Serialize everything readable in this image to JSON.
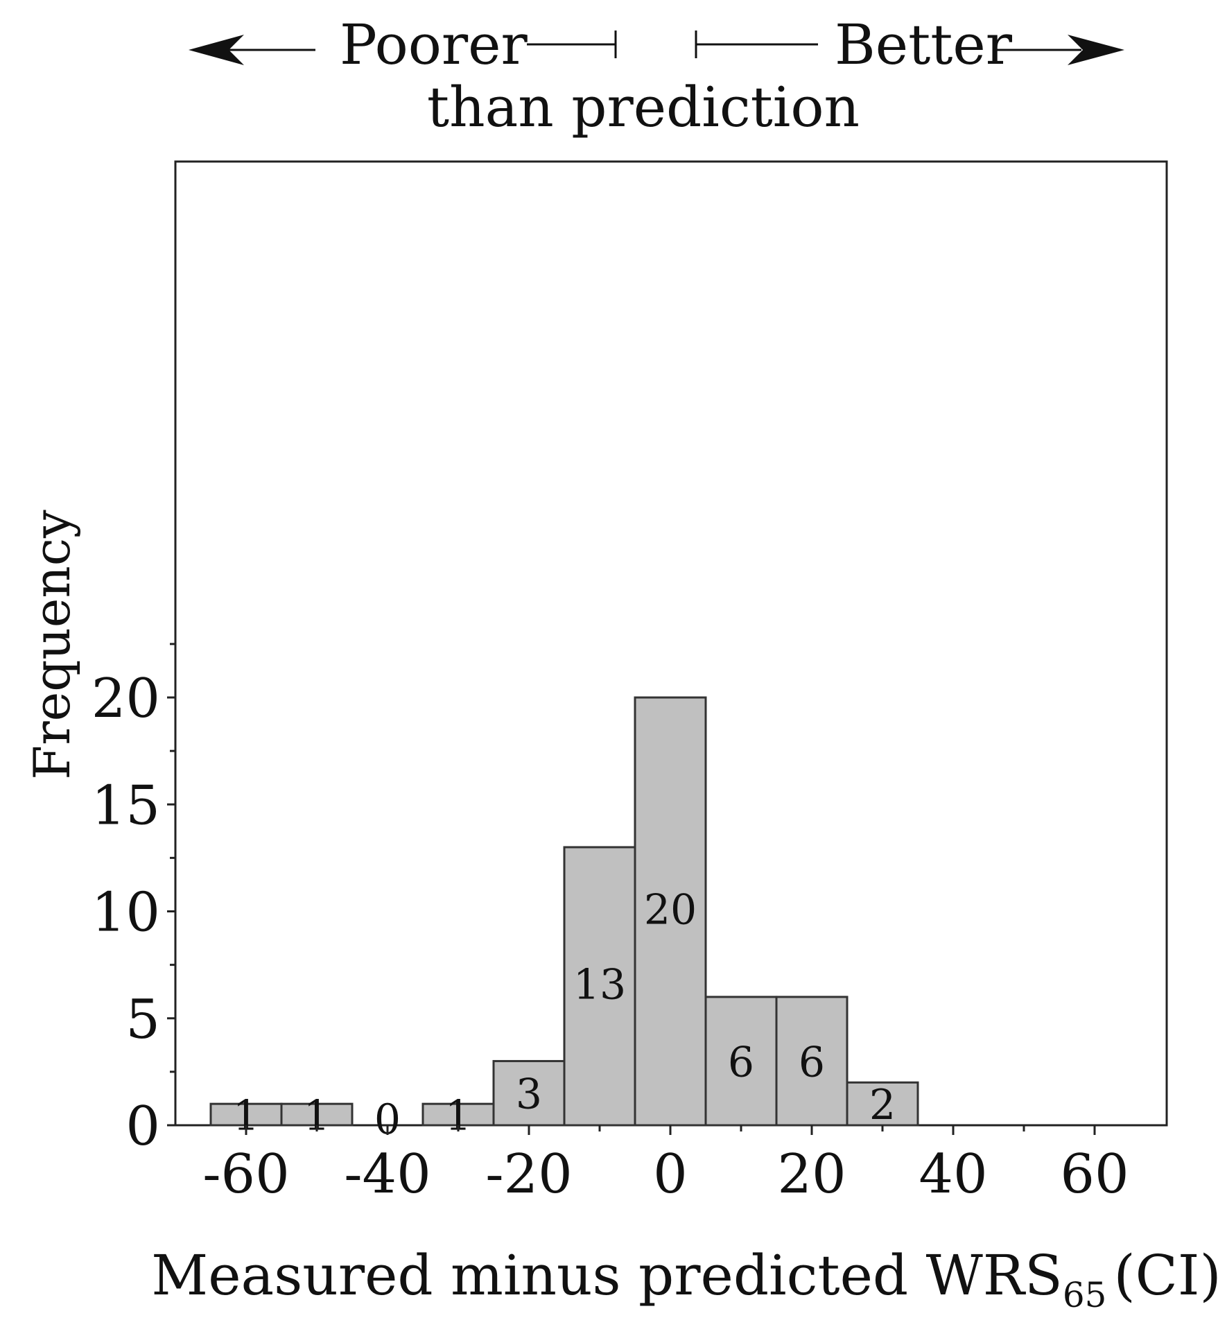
{
  "header": {
    "poorer_label": "Poorer",
    "better_label": "Better",
    "subtitle": "than prediction"
  },
  "chart_data": {
    "type": "bar",
    "bin_width": 10,
    "bins": [
      {
        "center": -60,
        "value": 1
      },
      {
        "center": -50,
        "value": 1
      },
      {
        "center": -40,
        "value": 0
      },
      {
        "center": -30,
        "value": 1
      },
      {
        "center": -20,
        "value": 3
      },
      {
        "center": -10,
        "value": 13
      },
      {
        "center": 0,
        "value": 20
      },
      {
        "center": 10,
        "value": 6
      },
      {
        "center": 20,
        "value": 6
      },
      {
        "center": 30,
        "value": 2
      }
    ],
    "xlim": [
      -70,
      70
    ],
    "ylim": [
      0,
      22.5
    ],
    "x_ticks": [
      "-60",
      "-40",
      "-20",
      "0",
      "20",
      "40",
      "60"
    ],
    "y_ticks": [
      "0",
      "5",
      "10",
      "15",
      "20"
    ],
    "ylabel": "Frequency",
    "xlabel_main": "Measured minus predicted WRS",
    "xlabel_subscript": "65",
    "xlabel_suffix": "(CI)",
    "grid": false,
    "bar_color": "#c0c0c0",
    "edge_color": "#333333"
  }
}
